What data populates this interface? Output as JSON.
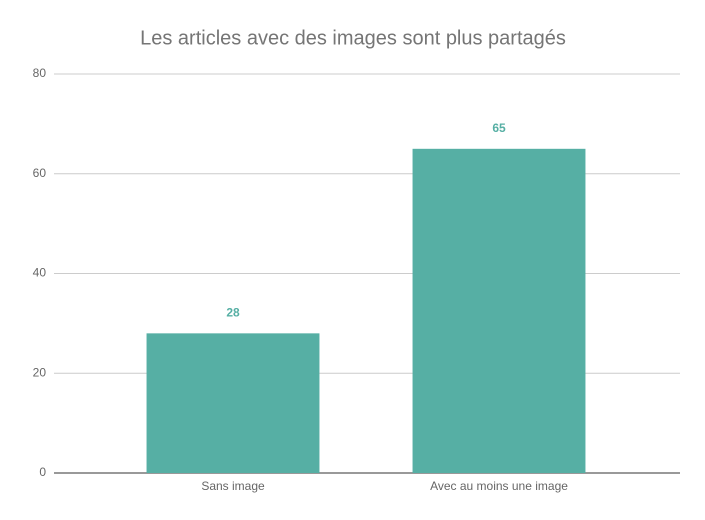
{
  "chart_data": {
    "type": "bar",
    "title": "Les articles avec des images sont plus partagés",
    "categories": [
      "Sans image",
      "Avec au moins une image"
    ],
    "values": [
      28,
      65
    ],
    "color": "#56afa4",
    "ylim": [
      0,
      80
    ],
    "yticks": [
      0,
      20,
      40,
      60,
      80
    ],
    "grid": true
  }
}
